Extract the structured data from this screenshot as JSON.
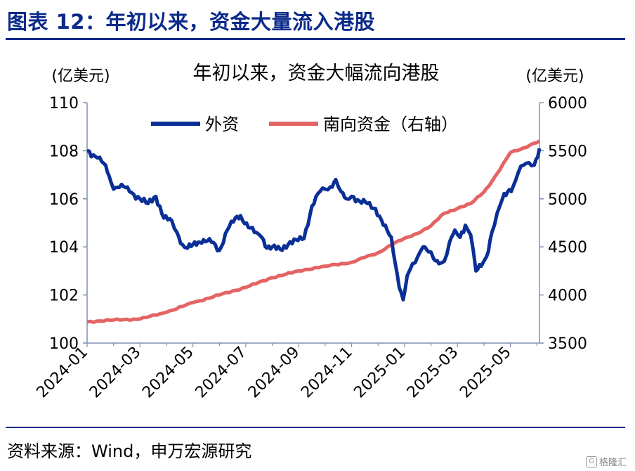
{
  "header": {
    "title": "图表 12：年初以来，资金大量流入港股"
  },
  "footer": {
    "source": "资料来源：Wind，申万宏源研究",
    "watermark": "格隆汇"
  },
  "colors": {
    "brand": "#0b2a8a",
    "series1": "#0a2f96",
    "series2": "#e46464",
    "axis": "#7f90b8"
  },
  "chart_data": {
    "type": "line",
    "title": "年初以来，资金大幅流向港股",
    "ylabel_left": "(亿美元)",
    "ylabel_right": "(亿美元)",
    "ylim_left": [
      100,
      110
    ],
    "ylim_right": [
      3500,
      6000
    ],
    "yticks_left": [
      "100",
      "102",
      "104",
      "106",
      "108",
      "110"
    ],
    "yticks_right": [
      "3500",
      "4000",
      "4500",
      "5000",
      "5500",
      "6000"
    ],
    "xticks": [
      "2024-01",
      "2024-03",
      "2024-05",
      "2024-07",
      "2024-09",
      "2024-11",
      "2025-01",
      "2025-03",
      "2025-05"
    ],
    "legend_position": "top-center",
    "grid": false,
    "series": [
      {
        "name": "外资",
        "axis": "left",
        "x": [
          0,
          0.4,
          0.7,
          0.9,
          1.0,
          1.3,
          1.6,
          2.0,
          2.3,
          2.6,
          2.9,
          3.2,
          3.4,
          3.6,
          3.8,
          4.0,
          4.2,
          4.4,
          4.7,
          5.0,
          5.3,
          5.6,
          5.8,
          6.1,
          6.4,
          6.6,
          6.8,
          7.0,
          7.3,
          7.6,
          7.9,
          8.2,
          8.5,
          8.8,
          9.0,
          9.2,
          9.4,
          9.6,
          9.8,
          10.0,
          10.3,
          10.6,
          10.9,
          11.2,
          11.5,
          11.8,
          11.95,
          12.1,
          12.3,
          12.5,
          12.7,
          12.9,
          13.1,
          13.3,
          13.5,
          13.7,
          13.9,
          14.1,
          14.3,
          14.5,
          14.7,
          14.9,
          15.1,
          15.3,
          15.5,
          15.7,
          15.9,
          16.1,
          16.3,
          16.5,
          16.7,
          16.9,
          17.1
        ],
        "values": [
          108.0,
          107.7,
          107.4,
          106.7,
          106.4,
          106.6,
          106.3,
          106.0,
          105.8,
          106.1,
          105.2,
          105.1,
          104.6,
          104.1,
          103.95,
          104.1,
          104.2,
          104.3,
          104.2,
          103.85,
          104.7,
          105.2,
          105.3,
          104.8,
          104.6,
          104.4,
          103.95,
          104.0,
          103.9,
          104.1,
          104.3,
          104.35,
          105.7,
          106.3,
          106.4,
          106.5,
          106.8,
          106.3,
          106.0,
          106.1,
          105.9,
          105.8,
          105.6,
          104.9,
          104.4,
          102.3,
          101.8,
          102.8,
          103.3,
          103.6,
          104.0,
          103.8,
          103.5,
          103.3,
          103.4,
          104.2,
          104.7,
          104.4,
          104.9,
          104.5,
          103.0,
          103.2,
          103.6,
          104.6,
          105.4,
          106.0,
          106.3,
          106.5,
          107.1,
          107.4,
          107.5,
          107.4,
          108.1
        ]
      },
      {
        "name": "南向资金（右轴）",
        "axis": "right",
        "x": [
          0,
          1.0,
          2.0,
          3.0,
          4.0,
          5.0,
          6.0,
          7.0,
          8.0,
          9.0,
          10.0,
          10.5,
          11.0,
          11.5,
          12.0,
          12.5,
          13.0,
          13.5,
          14.0,
          14.5,
          15.0,
          15.3,
          15.6,
          16.0,
          16.5,
          17.1
        ],
        "values": [
          3720,
          3740,
          3750,
          3820,
          3920,
          4000,
          4080,
          4180,
          4250,
          4300,
          4340,
          4390,
          4440,
          4520,
          4590,
          4640,
          4720,
          4850,
          4900,
          4950,
          5070,
          5180,
          5300,
          5480,
          5530,
          5600
        ]
      }
    ]
  }
}
